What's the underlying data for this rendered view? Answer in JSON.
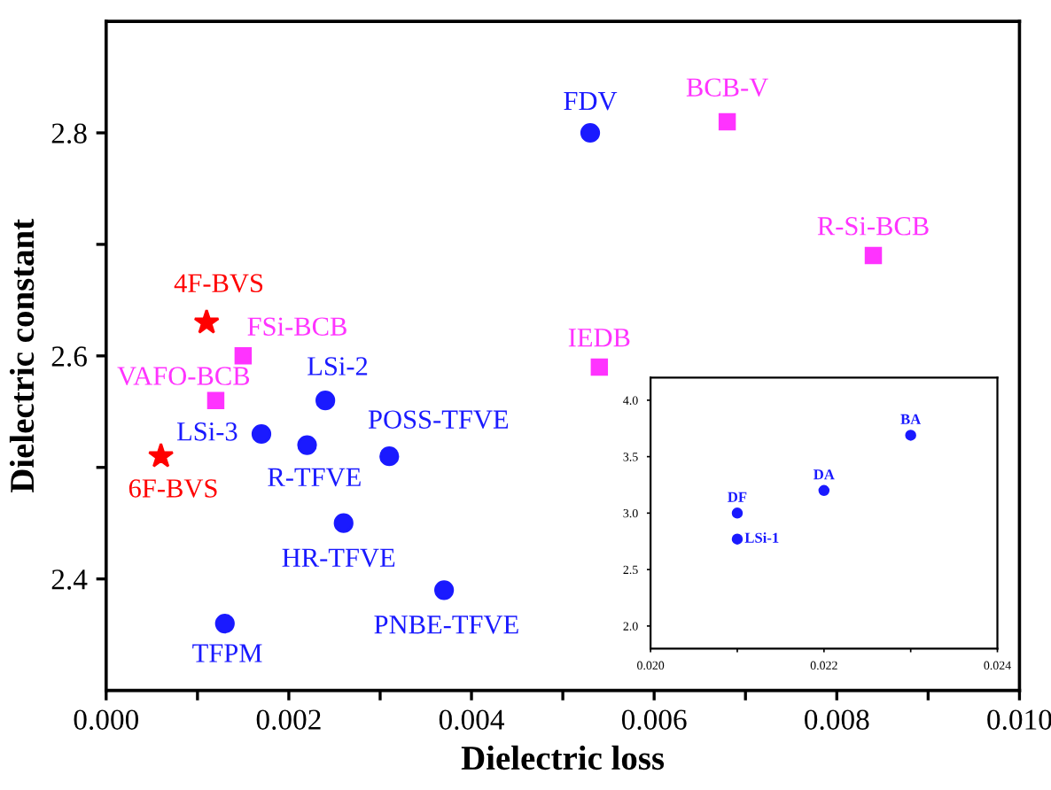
{
  "chart_data": [
    {
      "type": "scatter",
      "xlabel": "Dielectric loss",
      "ylabel": "Dielectric constant",
      "xlim": [
        0,
        0.01
      ],
      "ylim": [
        2.3,
        2.9
      ],
      "xticks": [
        {
          "value": 0,
          "label": "0.000"
        },
        {
          "value": 0.001,
          "label": null
        },
        {
          "value": 0.002,
          "label": "0.002"
        },
        {
          "value": 0.003,
          "label": null
        },
        {
          "value": 0.004,
          "label": "0.004"
        },
        {
          "value": 0.005,
          "label": null
        },
        {
          "value": 0.006,
          "label": "0.006"
        },
        {
          "value": 0.007,
          "label": null
        },
        {
          "value": 0.008,
          "label": "0.008"
        },
        {
          "value": 0.009,
          "label": null
        },
        {
          "value": 0.01,
          "label": "0.010"
        }
      ],
      "yticks": [
        {
          "value": 2.4,
          "label": "2.4"
        },
        {
          "value": 2.5,
          "label": null
        },
        {
          "value": 2.6,
          "label": "2.6"
        },
        {
          "value": 2.7,
          "label": null
        },
        {
          "value": 2.8,
          "label": "2.8"
        }
      ],
      "grid": false,
      "legend": false,
      "series": [
        {
          "color": "#1a1aff",
          "marker": "circle",
          "x": [
            0.0017,
            0.0024,
            0.0022,
            0.0031,
            0.0026,
            0.0037,
            0.0013,
            0.0053
          ],
          "values": [
            2.53,
            2.56,
            2.52,
            2.51,
            2.45,
            2.39,
            2.36,
            2.8
          ]
        },
        {
          "color": "#ff33ff",
          "marker": "square",
          "x": [
            0.0015,
            0.0012,
            0.0068,
            0.0084,
            0.0054
          ],
          "values": [
            2.6,
            2.56,
            2.81,
            2.69,
            2.59
          ]
        },
        {
          "color": "#ff0000",
          "marker": "star",
          "x": [
            0.0011,
            0.0006
          ],
          "values": [
            2.63,
            2.51
          ]
        }
      ],
      "annotations": [
        {
          "text": "LSi-3",
          "x": 0.0017,
          "y": 2.53
        },
        {
          "text": "LSi-2",
          "x": 0.0024,
          "y": 2.56
        },
        {
          "text": "R-TFVE",
          "x": 0.0022,
          "y": 2.52
        },
        {
          "text": "POSS-TFVE",
          "x": 0.0031,
          "y": 2.51
        },
        {
          "text": "HR-TFVE",
          "x": 0.0026,
          "y": 2.45
        },
        {
          "text": "PNBE-TFVE",
          "x": 0.0037,
          "y": 2.39
        },
        {
          "text": "TFPM",
          "x": 0.0013,
          "y": 2.36
        },
        {
          "text": "FDV",
          "x": 0.0053,
          "y": 2.8
        },
        {
          "text": "FSi-BCB",
          "x": 0.0015,
          "y": 2.6
        },
        {
          "text": "VAFO-BCB",
          "x": 0.0012,
          "y": 2.56
        },
        {
          "text": "BCB-V",
          "x": 0.0068,
          "y": 2.81
        },
        {
          "text": "R-Si-BCB",
          "x": 0.0084,
          "y": 2.69
        },
        {
          "text": "IEDB",
          "x": 0.0054,
          "y": 2.59
        },
        {
          "text": "4F-BVS",
          "x": 0.0011,
          "y": 2.63
        },
        {
          "text": "6F-BVS",
          "x": 0.0006,
          "y": 2.51
        }
      ]
    },
    {
      "type": "scatter",
      "xlim": [
        0.02,
        0.024
      ],
      "ylim": [
        1.8,
        4.2
      ],
      "xticks": [
        {
          "value": 0.02,
          "label": "0.020"
        },
        {
          "value": 0.021,
          "label": null
        },
        {
          "value": 0.022,
          "label": "0.022"
        },
        {
          "value": 0.023,
          "label": null
        },
        {
          "value": 0.024,
          "label": "0.024"
        }
      ],
      "yticks": [
        {
          "value": 2.0,
          "label": "2.0"
        },
        {
          "value": 2.5,
          "label": "2.5"
        },
        {
          "value": 3.0,
          "label": "3.0"
        },
        {
          "value": 3.5,
          "label": "3.5"
        },
        {
          "value": 4.0,
          "label": "4.0"
        }
      ],
      "grid": false,
      "legend": false,
      "series": [
        {
          "color": "#1a1aff",
          "marker": "circle",
          "x": [
            0.021,
            0.021,
            0.022,
            0.023
          ],
          "values": [
            3.0,
            2.77,
            3.2,
            3.69
          ]
        }
      ],
      "annotations": [
        {
          "text": "DF",
          "x": 0.021,
          "y": 3.0
        },
        {
          "text": "LSi-1",
          "x": 0.021,
          "y": 2.77
        },
        {
          "text": "DA",
          "x": 0.022,
          "y": 3.2
        },
        {
          "text": "BA",
          "x": 0.023,
          "y": 3.69
        }
      ]
    }
  ]
}
